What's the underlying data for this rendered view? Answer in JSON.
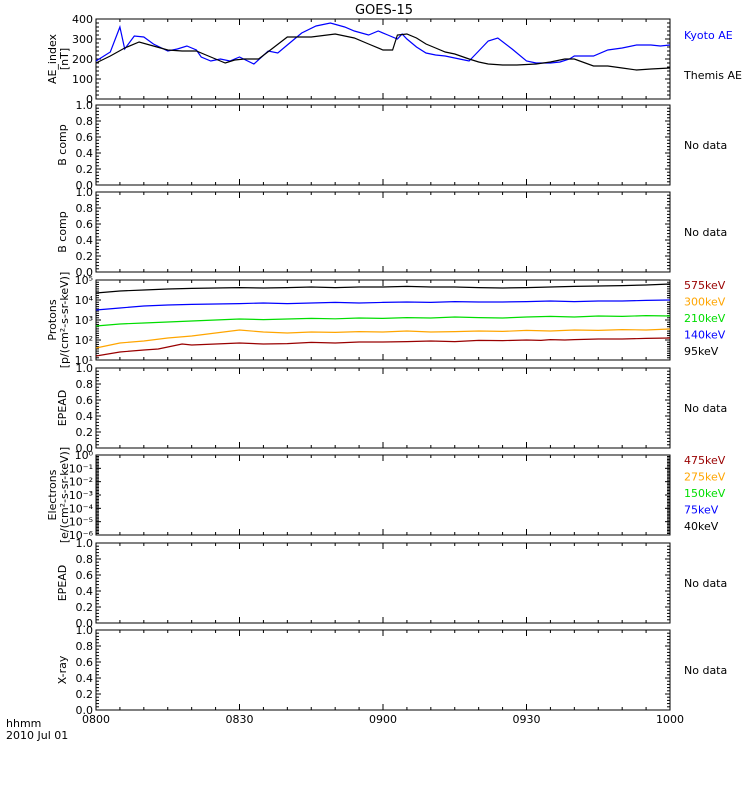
{
  "title": "GOES-15",
  "time_axis": {
    "corner_label_1": "hhmm",
    "corner_label_2": "2010 Jul 01",
    "ticks": [
      "0800",
      "0830",
      "0900",
      "0930",
      "1000"
    ]
  },
  "colors": {
    "axis": "#000000",
    "blue": "#0000ff",
    "black": "#000000",
    "dark_red": "#990000",
    "orange": "#ffa500",
    "green": "#00dd00"
  },
  "chart_data": [
    {
      "type": "line",
      "panel": "ae",
      "ylabel": [
        "AE_index",
        "[nT]"
      ],
      "ylim": [
        0,
        400
      ],
      "yticks": [
        "0",
        "100",
        "200",
        "300",
        "400"
      ],
      "xlim": [
        0,
        120
      ],
      "status": "",
      "series": [
        {
          "name": "Kyoto AE",
          "color": "#0000ff",
          "x": [
            0,
            3,
            5,
            6,
            8,
            10,
            12,
            15,
            17,
            19,
            21,
            22,
            24,
            26,
            28,
            30,
            33,
            36,
            38,
            40,
            43,
            46,
            49,
            52,
            54,
            57,
            59,
            61,
            63,
            64,
            65,
            67,
            69,
            71,
            73,
            76,
            78,
            80,
            82,
            84,
            87,
            90,
            92,
            95,
            97,
            99,
            100,
            104,
            107,
            110,
            113,
            116,
            118,
            120
          ],
          "y": [
            190,
            235,
            360,
            250,
            315,
            310,
            275,
            240,
            250,
            265,
            245,
            210,
            190,
            200,
            190,
            210,
            175,
            240,
            230,
            270,
            330,
            365,
            380,
            360,
            340,
            320,
            340,
            320,
            300,
            325,
            300,
            260,
            230,
            220,
            215,
            200,
            190,
            240,
            290,
            305,
            250,
            190,
            180,
            180,
            185,
            200,
            215,
            215,
            245,
            255,
            270,
            270,
            265,
            270
          ]
        },
        {
          "name": "Themis AE",
          "color": "#000000",
          "x": [
            0,
            3,
            6,
            9,
            12,
            15,
            18,
            21,
            23,
            25,
            27,
            29,
            31,
            34,
            37,
            40,
            45,
            50,
            54,
            57,
            60,
            62,
            63,
            65,
            67,
            69,
            71,
            73,
            75,
            78,
            80,
            82,
            85,
            88,
            92,
            95,
            98,
            100,
            104,
            107,
            110,
            113,
            116,
            120
          ],
          "y": [
            180,
            215,
            255,
            285,
            265,
            245,
            240,
            240,
            220,
            200,
            180,
            195,
            200,
            200,
            255,
            310,
            310,
            325,
            305,
            275,
            245,
            245,
            320,
            325,
            305,
            275,
            255,
            235,
            225,
            200,
            185,
            175,
            170,
            170,
            175,
            185,
            200,
            200,
            165,
            165,
            155,
            145,
            150,
            155
          ]
        }
      ]
    },
    {
      "type": "line",
      "panel": "b1",
      "ylabel": [
        "B comp"
      ],
      "ylim": [
        0,
        1
      ],
      "yticks": [
        "0.0",
        "0.2",
        "0.4",
        "0.6",
        "0.8",
        "1.0"
      ],
      "status": "No data",
      "series": []
    },
    {
      "type": "line",
      "panel": "b2",
      "ylabel": [
        "B comp"
      ],
      "ylim": [
        0,
        1
      ],
      "yticks": [
        "0.0",
        "0.2",
        "0.4",
        "0.6",
        "0.8",
        "1.0"
      ],
      "status": "No data",
      "series": []
    },
    {
      "type": "line",
      "panel": "protons",
      "ylabel": [
        "Protons",
        "[p/(cm²-s-sr-keV)]"
      ],
      "ylim": [
        1,
        5
      ],
      "log_scale": true,
      "yticks": [
        "10¹",
        "10²",
        "10³",
        "10⁴",
        "10⁵"
      ],
      "status": "",
      "series": [
        {
          "name": "575keV",
          "color": "#990000",
          "x": [
            0,
            5,
            10,
            13,
            15,
            18,
            20,
            25,
            30,
            35,
            40,
            45,
            50,
            55,
            60,
            65,
            70,
            75,
            80,
            85,
            90,
            93,
            95,
            98,
            100,
            105,
            110,
            115,
            120
          ],
          "y": [
            1.2,
            1.4,
            1.5,
            1.55,
            1.65,
            1.8,
            1.75,
            1.8,
            1.85,
            1.8,
            1.82,
            1.88,
            1.85,
            1.9,
            1.9,
            1.92,
            1.95,
            1.92,
            1.98,
            1.97,
            2.0,
            1.98,
            2.02,
            2.0,
            2.02,
            2.05,
            2.05,
            2.08,
            2.1
          ]
        },
        {
          "name": "300keV",
          "color": "#ffa500",
          "x": [
            0,
            5,
            10,
            15,
            20,
            25,
            30,
            35,
            40,
            45,
            50,
            55,
            60,
            65,
            70,
            75,
            80,
            85,
            90,
            95,
            100,
            105,
            110,
            115,
            120
          ],
          "y": [
            1.6,
            1.85,
            1.95,
            2.1,
            2.2,
            2.35,
            2.5,
            2.4,
            2.35,
            2.4,
            2.38,
            2.42,
            2.4,
            2.45,
            2.4,
            2.42,
            2.45,
            2.43,
            2.48,
            2.45,
            2.5,
            2.48,
            2.52,
            2.5,
            2.55
          ]
        },
        {
          "name": "210keV",
          "color": "#00dd00",
          "x": [
            0,
            5,
            10,
            15,
            20,
            25,
            30,
            35,
            40,
            45,
            50,
            55,
            60,
            65,
            70,
            75,
            80,
            85,
            90,
            95,
            100,
            105,
            110,
            115,
            120
          ],
          "y": [
            2.7,
            2.8,
            2.85,
            2.9,
            2.95,
            3.0,
            3.05,
            3.02,
            3.05,
            3.08,
            3.06,
            3.1,
            3.08,
            3.12,
            3.1,
            3.15,
            3.12,
            3.1,
            3.15,
            3.18,
            3.15,
            3.2,
            3.18,
            3.22,
            3.2
          ]
        },
        {
          "name": "140keV",
          "color": "#0000ff",
          "x": [
            0,
            5,
            10,
            15,
            20,
            25,
            30,
            35,
            40,
            45,
            50,
            55,
            60,
            65,
            70,
            75,
            80,
            85,
            90,
            95,
            100,
            105,
            110,
            115,
            120
          ],
          "y": [
            3.5,
            3.6,
            3.7,
            3.75,
            3.78,
            3.8,
            3.82,
            3.85,
            3.82,
            3.85,
            3.88,
            3.85,
            3.88,
            3.9,
            3.88,
            3.92,
            3.9,
            3.9,
            3.92,
            3.95,
            3.92,
            3.95,
            3.95,
            3.98,
            4.0
          ]
        },
        {
          "name": "95keV",
          "color": "#000000",
          "x": [
            0,
            5,
            10,
            15,
            20,
            25,
            30,
            35,
            40,
            45,
            50,
            55,
            60,
            65,
            70,
            75,
            80,
            85,
            90,
            95,
            100,
            105,
            110,
            115,
            120
          ],
          "y": [
            4.35,
            4.45,
            4.5,
            4.55,
            4.58,
            4.6,
            4.62,
            4.6,
            4.62,
            4.65,
            4.62,
            4.65,
            4.65,
            4.68,
            4.65,
            4.65,
            4.62,
            4.6,
            4.62,
            4.65,
            4.68,
            4.7,
            4.72,
            4.75,
            4.8
          ]
        }
      ]
    },
    {
      "type": "line",
      "panel": "epead1",
      "ylabel": [
        "EPEAD"
      ],
      "ylim": [
        0,
        1
      ],
      "yticks": [
        "0.0",
        "0.2",
        "0.4",
        "0.6",
        "0.8",
        "1.0"
      ],
      "status": "No data",
      "series": []
    },
    {
      "type": "line",
      "panel": "electrons",
      "ylabel": [
        "Electrons",
        "[e/(cm²-s-sr-keV)]"
      ],
      "ylim": [
        -6,
        0
      ],
      "log_scale": true,
      "yticks": [
        "10⁻⁶",
        "10⁻⁵",
        "10⁻⁴",
        "10⁻³",
        "10⁻²",
        "10⁻¹",
        "10⁰"
      ],
      "status": "",
      "series": []
    },
    {
      "type": "line",
      "panel": "epead2",
      "ylabel": [
        "EPEAD"
      ],
      "ylim": [
        0,
        1
      ],
      "yticks": [
        "0.0",
        "0.2",
        "0.4",
        "0.6",
        "0.8",
        "1.0"
      ],
      "status": "No data",
      "series": []
    },
    {
      "type": "line",
      "panel": "xray",
      "ylabel": [
        "X-ray"
      ],
      "ylim": [
        0,
        1
      ],
      "yticks": [
        "0.0",
        "0.2",
        "0.4",
        "0.6",
        "0.8",
        "1.0"
      ],
      "status": "No data",
      "series": []
    }
  ],
  "legends": {
    "ae": [
      {
        "text": "Kyoto AE",
        "color": "#0000ff"
      },
      {
        "text": "Themis AE",
        "color": "#000000"
      }
    ],
    "protons": [
      {
        "text": "575keV",
        "color": "#990000"
      },
      {
        "text": "300keV",
        "color": "#ffa500"
      },
      {
        "text": "210keV",
        "color": "#00dd00"
      },
      {
        "text": "140keV",
        "color": "#0000ff"
      },
      {
        "text": "95keV",
        "color": "#000000"
      }
    ],
    "electrons": [
      {
        "text": "475keV",
        "color": "#990000"
      },
      {
        "text": "275keV",
        "color": "#ffa500"
      },
      {
        "text": "150keV",
        "color": "#00dd00"
      },
      {
        "text": "75keV",
        "color": "#0000ff"
      },
      {
        "text": "40keV",
        "color": "#000000"
      }
    ]
  }
}
